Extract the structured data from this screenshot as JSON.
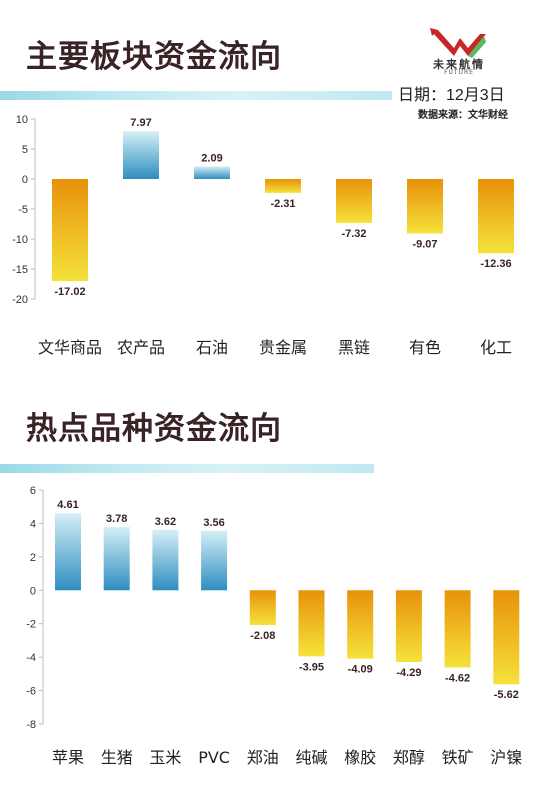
{
  "header": {
    "title1": "主要板块资金流向",
    "title2": "热点品种资金流向",
    "date": "日期：12月3日",
    "source": "数据来源：文华财经",
    "logo_name": "未来航情",
    "logo_sub": "FUTURE"
  },
  "colors": {
    "positive_top": "#d4eff6",
    "positive_bottom": "#2e8ec0",
    "negative_top": "#e8910a",
    "negative_bottom": "#f5e23a",
    "title": "#3a2327",
    "stripe": "#9ad9e6"
  },
  "chart_data": [
    {
      "type": "bar",
      "title": "主要板块资金流向",
      "categories": [
        "文华商品",
        "农产品",
        "石油",
        "贵金属",
        "黑链",
        "有色",
        "化工"
      ],
      "values": [
        -17.02,
        7.97,
        2.09,
        -2.31,
        -7.32,
        -9.07,
        -12.36
      ],
      "value_labels": [
        "-17.02",
        "7.97",
        "2.09",
        "-2.31",
        "-7.32",
        "-9.07",
        "-12.36"
      ],
      "yticks": [
        10,
        5,
        0,
        -5,
        -10,
        -15,
        -20
      ],
      "ylim": [
        -20,
        10
      ],
      "grid": false,
      "legend": "none"
    },
    {
      "type": "bar",
      "title": "热点品种资金流向",
      "categories": [
        "苹果",
        "生猪",
        "玉米",
        "PVC",
        "郑油",
        "纯碱",
        "橡胶",
        "郑醇",
        "铁矿",
        "沪镍"
      ],
      "values": [
        4.61,
        3.78,
        3.62,
        3.56,
        -2.08,
        -3.95,
        -4.09,
        -4.29,
        -4.62,
        -5.62
      ],
      "value_labels": [
        "4.61",
        "3.78",
        "3.62",
        "3.56",
        "-2.08",
        "-3.95",
        "-4.09",
        "-4.29",
        "-4.62",
        "-5.62"
      ],
      "yticks": [
        6,
        4,
        2,
        0,
        -2,
        -4,
        -6,
        -8
      ],
      "ylim": [
        -8,
        6
      ],
      "grid": false,
      "legend": "none"
    }
  ]
}
